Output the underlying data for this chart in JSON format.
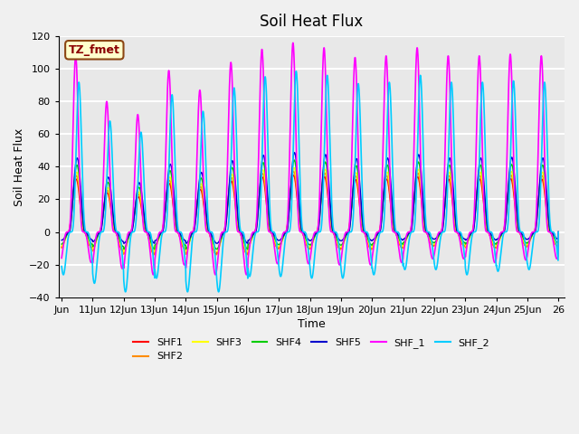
{
  "title": "Soil Heat Flux",
  "xlabel": "Time",
  "ylabel": "Soil Heat Flux",
  "ylim": [
    -40,
    120
  ],
  "x_tick_positions": [
    0,
    1,
    2,
    3,
    4,
    5,
    6,
    7,
    8,
    9,
    10,
    11,
    12,
    13,
    14,
    15,
    16
  ],
  "x_tick_labels": [
    "Jun",
    "11Jun",
    "12Jun",
    "13Jun",
    "14Jun",
    "15Jun",
    "16Jun",
    "17Jun",
    "18Jun",
    "19Jun",
    "20Jun",
    "21Jun",
    "22Jun",
    "23Jun",
    "24Jun",
    "25Jun",
    "26"
  ],
  "annotation_text": "TZ_fmet",
  "annotation_color": "#8B0000",
  "annotation_bg": "#FFFFCC",
  "annotation_border": "#8B4513",
  "legend_entries": [
    "SHF1",
    "SHF2",
    "SHF3",
    "SHF4",
    "SHF5",
    "SHF_1",
    "SHF_2"
  ],
  "line_colors": [
    "#FF0000",
    "#FF8C00",
    "#FFFF00",
    "#00CC00",
    "#0000CC",
    "#FF00FF",
    "#00CCFF"
  ],
  "background_color": "#E8E8E8",
  "grid_color": "#FFFFFF",
  "num_days": 16,
  "peak_pattern": [
    108,
    80,
    72,
    99,
    87,
    104,
    112,
    116,
    113,
    107,
    108,
    113,
    108,
    108,
    109,
    108
  ],
  "trough_pattern": [
    25,
    30,
    35,
    27,
    35,
    35,
    26,
    26,
    27,
    27,
    25,
    22,
    22,
    25,
    23,
    22
  ]
}
